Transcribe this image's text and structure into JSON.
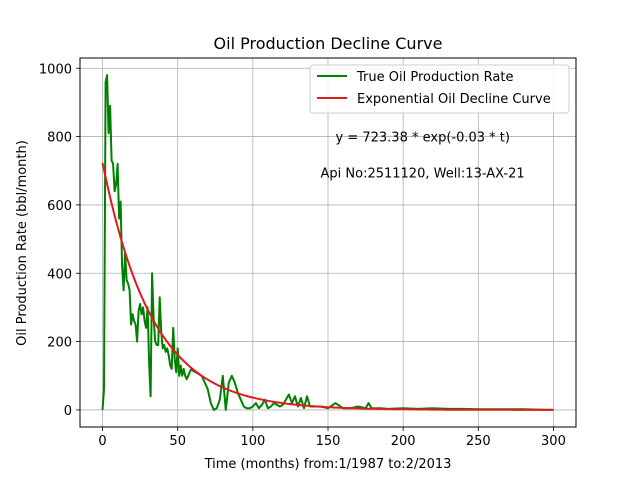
{
  "chart_data": {
    "type": "line",
    "title": "Oil Production Decline Curve",
    "xlabel": "Time (months) from:1/1987 to:2/2013",
    "ylabel": "Oil Production Rate (bbl/month)",
    "xlim": [
      -15,
      315
    ],
    "ylim": [
      -50,
      1030
    ],
    "x_ticks": [
      0,
      50,
      100,
      150,
      200,
      250,
      300
    ],
    "x_tick_labels": [
      "0",
      "50",
      "100",
      "150",
      "200",
      "250",
      "300"
    ],
    "y_ticks": [
      0,
      200,
      400,
      600,
      800,
      1000
    ],
    "y_tick_labels": [
      "0",
      "200",
      "400",
      "600",
      "800",
      "1000"
    ],
    "grid": true,
    "legend_position": "top-right",
    "annotations": [
      {
        "text": "y = 723.38 * exp(-0.03 * t)",
        "x": 155,
        "y": 800
      },
      {
        "text": "Api No:2511120, Well:13-AX-21",
        "x": 145,
        "y": 695
      }
    ],
    "series": [
      {
        "name": "True Oil Production Rate",
        "color": "#008000",
        "x": [
          0,
          1,
          2,
          3,
          4,
          5,
          6,
          7,
          8,
          9,
          10,
          11,
          12,
          13,
          14,
          15,
          16,
          17,
          18,
          19,
          20,
          21,
          22,
          23,
          24,
          25,
          26,
          27,
          28,
          29,
          30,
          31,
          32,
          33,
          34,
          35,
          36,
          37,
          38,
          39,
          40,
          41,
          42,
          43,
          44,
          45,
          46,
          47,
          48,
          49,
          50,
          51,
          52,
          53,
          54,
          55,
          56,
          57,
          58,
          59,
          60,
          62,
          64,
          66,
          68,
          70,
          72,
          74,
          76,
          78,
          80,
          82,
          84,
          86,
          88,
          90,
          92,
          94,
          96,
          98,
          100,
          102,
          104,
          106,
          108,
          110,
          112,
          114,
          116,
          118,
          120,
          122,
          124,
          126,
          128,
          130,
          132,
          134,
          136,
          138,
          140,
          145,
          150,
          155,
          160,
          165,
          170,
          175,
          177,
          179,
          185,
          190,
          200,
          210,
          220,
          230,
          240,
          250,
          260,
          270,
          280,
          290,
          300
        ],
        "y": [
          0,
          60,
          960,
          980,
          810,
          890,
          730,
          720,
          640,
          660,
          720,
          560,
          610,
          420,
          350,
          460,
          380,
          370,
          350,
          250,
          280,
          260,
          250,
          200,
          290,
          310,
          280,
          300,
          260,
          240,
          300,
          140,
          40,
          400,
          270,
          200,
          190,
          190,
          330,
          230,
          180,
          190,
          170,
          180,
          160,
          130,
          120,
          240,
          150,
          110,
          180,
          100,
          130,
          100,
          120,
          100,
          90,
          100,
          110,
          120,
          115,
          110,
          105,
          100,
          80,
          60,
          20,
          0,
          5,
          30,
          100,
          0,
          80,
          100,
          80,
          50,
          30,
          10,
          5,
          5,
          10,
          20,
          5,
          15,
          30,
          5,
          10,
          20,
          15,
          10,
          15,
          30,
          45,
          20,
          40,
          10,
          35,
          5,
          40,
          10,
          10,
          10,
          5,
          20,
          5,
          5,
          10,
          5,
          20,
          5,
          5,
          3,
          5,
          3,
          5,
          3,
          3,
          2,
          2,
          2,
          2,
          1,
          0
        ]
      },
      {
        "name": "Exponential Oil Decline Curve",
        "color": "#e31a1c",
        "fit": {
          "a": 723.38,
          "b": 0.03
        },
        "x_range": [
          0,
          300
        ]
      }
    ]
  }
}
